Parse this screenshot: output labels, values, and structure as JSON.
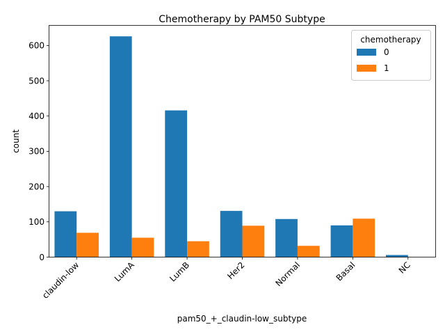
{
  "chart_data": {
    "type": "bar",
    "title": "Chemotherapy by PAM50 Subtype",
    "xlabel": "pam50_+_claudin-low_subtype",
    "ylabel": "count",
    "categories": [
      "claudin-low",
      "LumA",
      "LumB",
      "Her2",
      "Normal",
      "Basal",
      "NC"
    ],
    "series": [
      {
        "name": "0",
        "color": "#1f77b4",
        "values": [
          130,
          626,
          416,
          131,
          108,
          90,
          6
        ]
      },
      {
        "name": "1",
        "color": "#ff7f0e",
        "values": [
          69,
          55,
          45,
          89,
          32,
          109,
          0
        ]
      }
    ],
    "ylim": [
      0,
      657
    ],
    "yticks": [
      0,
      100,
      200,
      300,
      400,
      500,
      600
    ],
    "grid": false,
    "legend": {
      "title": "chemotherapy",
      "placement": "top-right"
    }
  }
}
